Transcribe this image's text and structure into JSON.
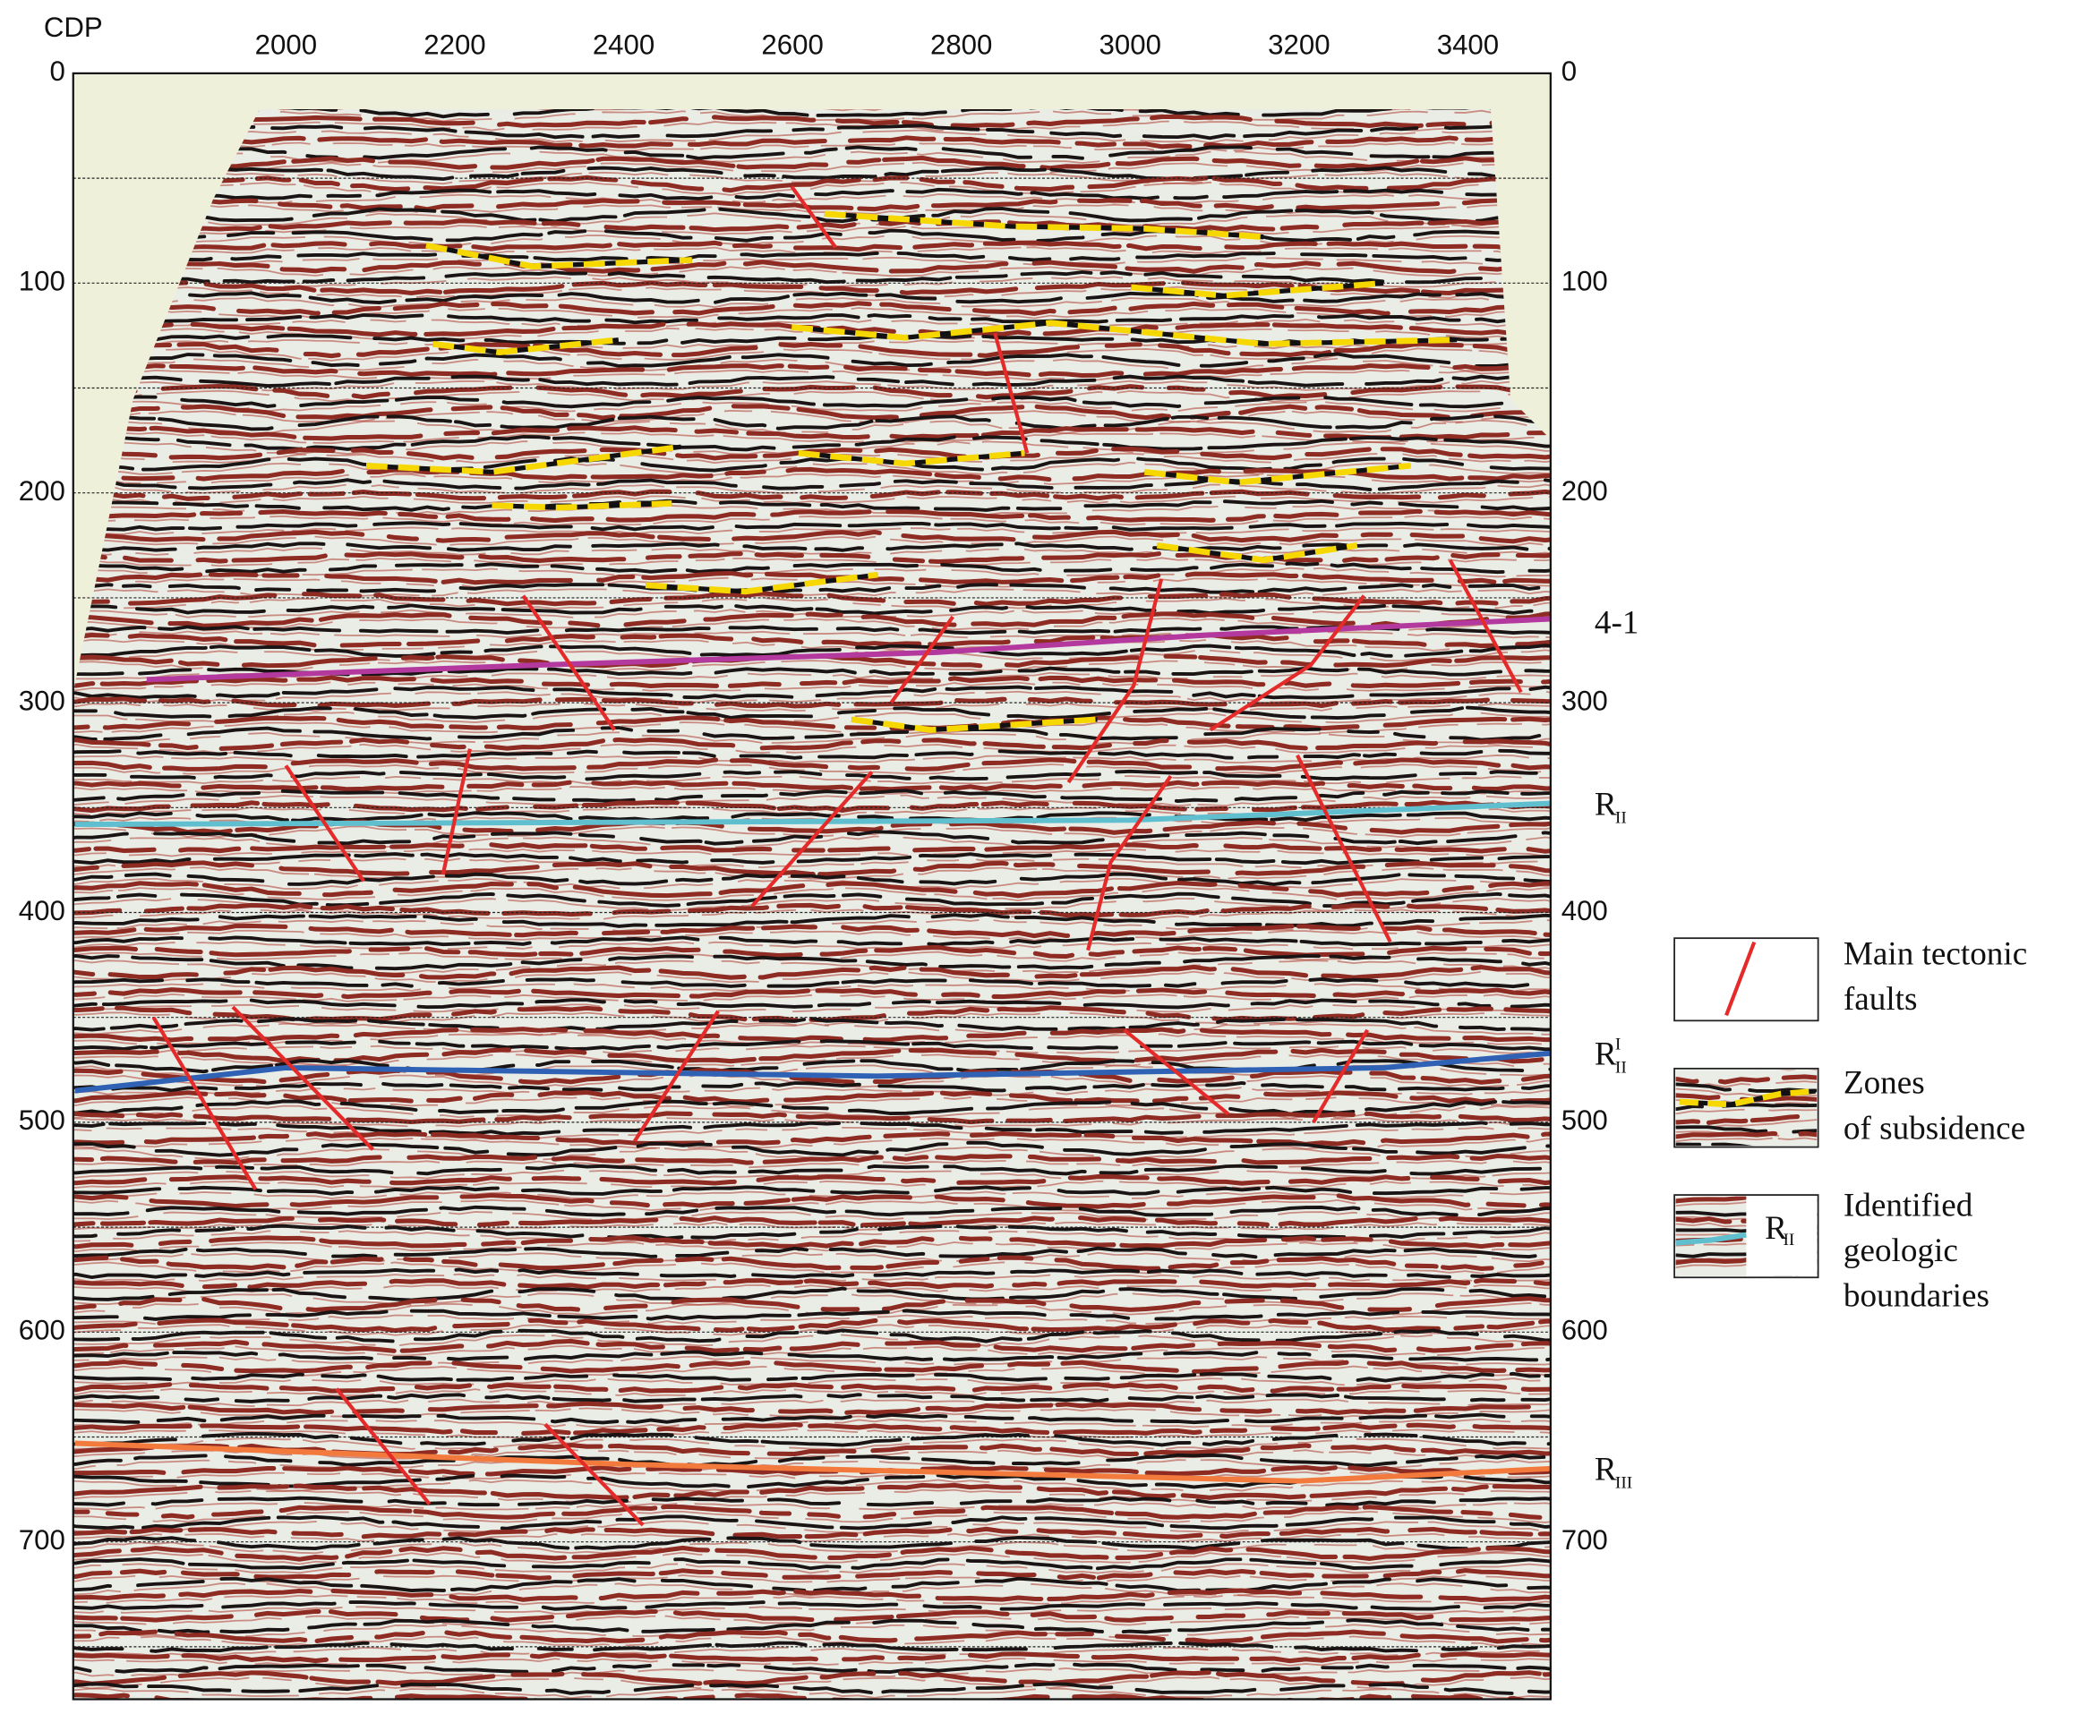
{
  "chart_data": {
    "type": "seismic-section",
    "x_label": "CDP",
    "xlim": [
      1748,
      3498
    ],
    "ylim": [
      0,
      775
    ],
    "y_axis_reversed": true,
    "xticks": [
      2000,
      2200,
      2400,
      2600,
      2800,
      3000,
      3200,
      3400
    ],
    "yticks": [
      0,
      100,
      200,
      300,
      400,
      500,
      600,
      700
    ],
    "grid_lines": [
      50,
      100,
      150,
      200,
      250,
      300,
      350,
      400,
      450,
      500,
      550,
      600,
      650,
      700,
      750
    ],
    "horizons": [
      {
        "label": {
          "text": "4-1"
        },
        "color": "#b4399e",
        "x": [
          1835,
          2300,
          2770,
          3080,
          3500
        ],
        "y": [
          289,
          282,
          276,
          268,
          260
        ]
      },
      {
        "label": {
          "text": "R",
          "sub": "II"
        },
        "color": "#5fbfcf",
        "x": [
          1750,
          2400,
          3000,
          3500
        ],
        "y": [
          358,
          357,
          356,
          348
        ]
      },
      {
        "label": {
          "text": "R",
          "sup": "I",
          "sub": "II"
        },
        "color": "#2f62b5",
        "x": [
          1750,
          2000,
          2700,
          3300,
          3500
        ],
        "y": [
          485,
          474,
          478,
          474,
          467
        ]
      },
      {
        "label": {
          "text": "R",
          "sub": "III"
        },
        "color": "#f27a3c",
        "x": [
          1750,
          2400,
          3200,
          3500
        ],
        "y": [
          653,
          663,
          671,
          665
        ]
      }
    ],
    "fault_color": "#e52a2a",
    "faults": [
      {
        "x": [
          2599,
          2651
        ],
        "y": [
          54,
          83
        ]
      },
      {
        "x": [
          2840,
          2878
        ],
        "y": [
          124,
          181
        ]
      },
      {
        "x": [
          2281,
          2389
        ],
        "y": [
          249,
          313
        ]
      },
      {
        "x": [
          2790,
          2717
        ],
        "y": [
          259,
          300
        ]
      },
      {
        "x": [
          3037,
          3004,
          2927
        ],
        "y": [
          241,
          292,
          338
        ]
      },
      {
        "x": [
          3277,
          3214,
          3095
        ],
        "y": [
          249,
          282,
          313
        ]
      },
      {
        "x": [
          3379,
          3463
        ],
        "y": [
          232,
          295
        ]
      },
      {
        "x": [
          2000,
          2092
        ],
        "y": [
          330,
          385
        ]
      },
      {
        "x": [
          2218,
          2186
        ],
        "y": [
          322,
          382
        ]
      },
      {
        "x": [
          2694,
          2552
        ],
        "y": [
          333,
          397
        ]
      },
      {
        "x": [
          3048,
          2977,
          2950
        ],
        "y": [
          335,
          376,
          418
        ]
      },
      {
        "x": [
          3198,
          3308
        ],
        "y": [
          325,
          414
        ]
      },
      {
        "x": [
          1843,
          1964
        ],
        "y": [
          450,
          532
        ]
      },
      {
        "x": [
          1937,
          2103
        ],
        "y": [
          445,
          513
        ]
      },
      {
        "x": [
          2512,
          2413
        ],
        "y": [
          447,
          509
        ]
      },
      {
        "x": [
          2993,
          3116
        ],
        "y": [
          456,
          496
        ]
      },
      {
        "x": [
          3281,
          3217
        ],
        "y": [
          456,
          500
        ]
      },
      {
        "x": [
          2060,
          2170
        ],
        "y": [
          627,
          682
        ]
      },
      {
        "x": [
          2307,
          2423
        ],
        "y": [
          644,
          692
        ]
      }
    ],
    "subsidence_color": "#f6d800",
    "subsidence_zones": [
      {
        "x": [
          2166,
          2292,
          2481
        ],
        "y": [
          82,
          92,
          89
        ]
      },
      {
        "x": [
          2638,
          2859,
          3017,
          3158
        ],
        "y": [
          67,
          73,
          74,
          78
        ]
      },
      {
        "x": [
          3001,
          3111,
          3300
        ],
        "y": [
          102,
          106,
          100
        ]
      },
      {
        "x": [
          2174,
          2253,
          2394
        ],
        "y": [
          129,
          133,
          127
        ]
      },
      {
        "x": [
          2599,
          2733,
          2906,
          3158,
          3387
        ],
        "y": [
          121,
          126,
          119,
          129,
          127
        ]
      },
      {
        "x": [
          2095,
          2244,
          2468
        ],
        "y": [
          187,
          190,
          178
        ]
      },
      {
        "x": [
          2607,
          2733,
          2875
        ],
        "y": [
          181,
          186,
          181
        ]
      },
      {
        "x": [
          3017,
          3127,
          3332
        ],
        "y": [
          190,
          195,
          187
        ]
      },
      {
        "x": [
          2244,
          2323,
          2457
        ],
        "y": [
          206,
          207,
          205
        ]
      },
      {
        "x": [
          3032,
          3158,
          3269
        ],
        "y": [
          225,
          232,
          225
        ]
      },
      {
        "x": [
          2426,
          2544,
          2701
        ],
        "y": [
          244,
          247,
          239
        ]
      },
      {
        "x": [
          2670,
          2764,
          2961
        ],
        "y": [
          308,
          313,
          308
        ]
      }
    ],
    "legend": [
      {
        "label": [
          "Main tectonic",
          "faults"
        ]
      },
      {
        "label": [
          "Zones",
          "of subsidence"
        ]
      },
      {
        "label": [
          "Identified",
          "geologic",
          "boundaries"
        ],
        "sample_label": {
          "text": "R",
          "sub": "II"
        }
      }
    ]
  }
}
